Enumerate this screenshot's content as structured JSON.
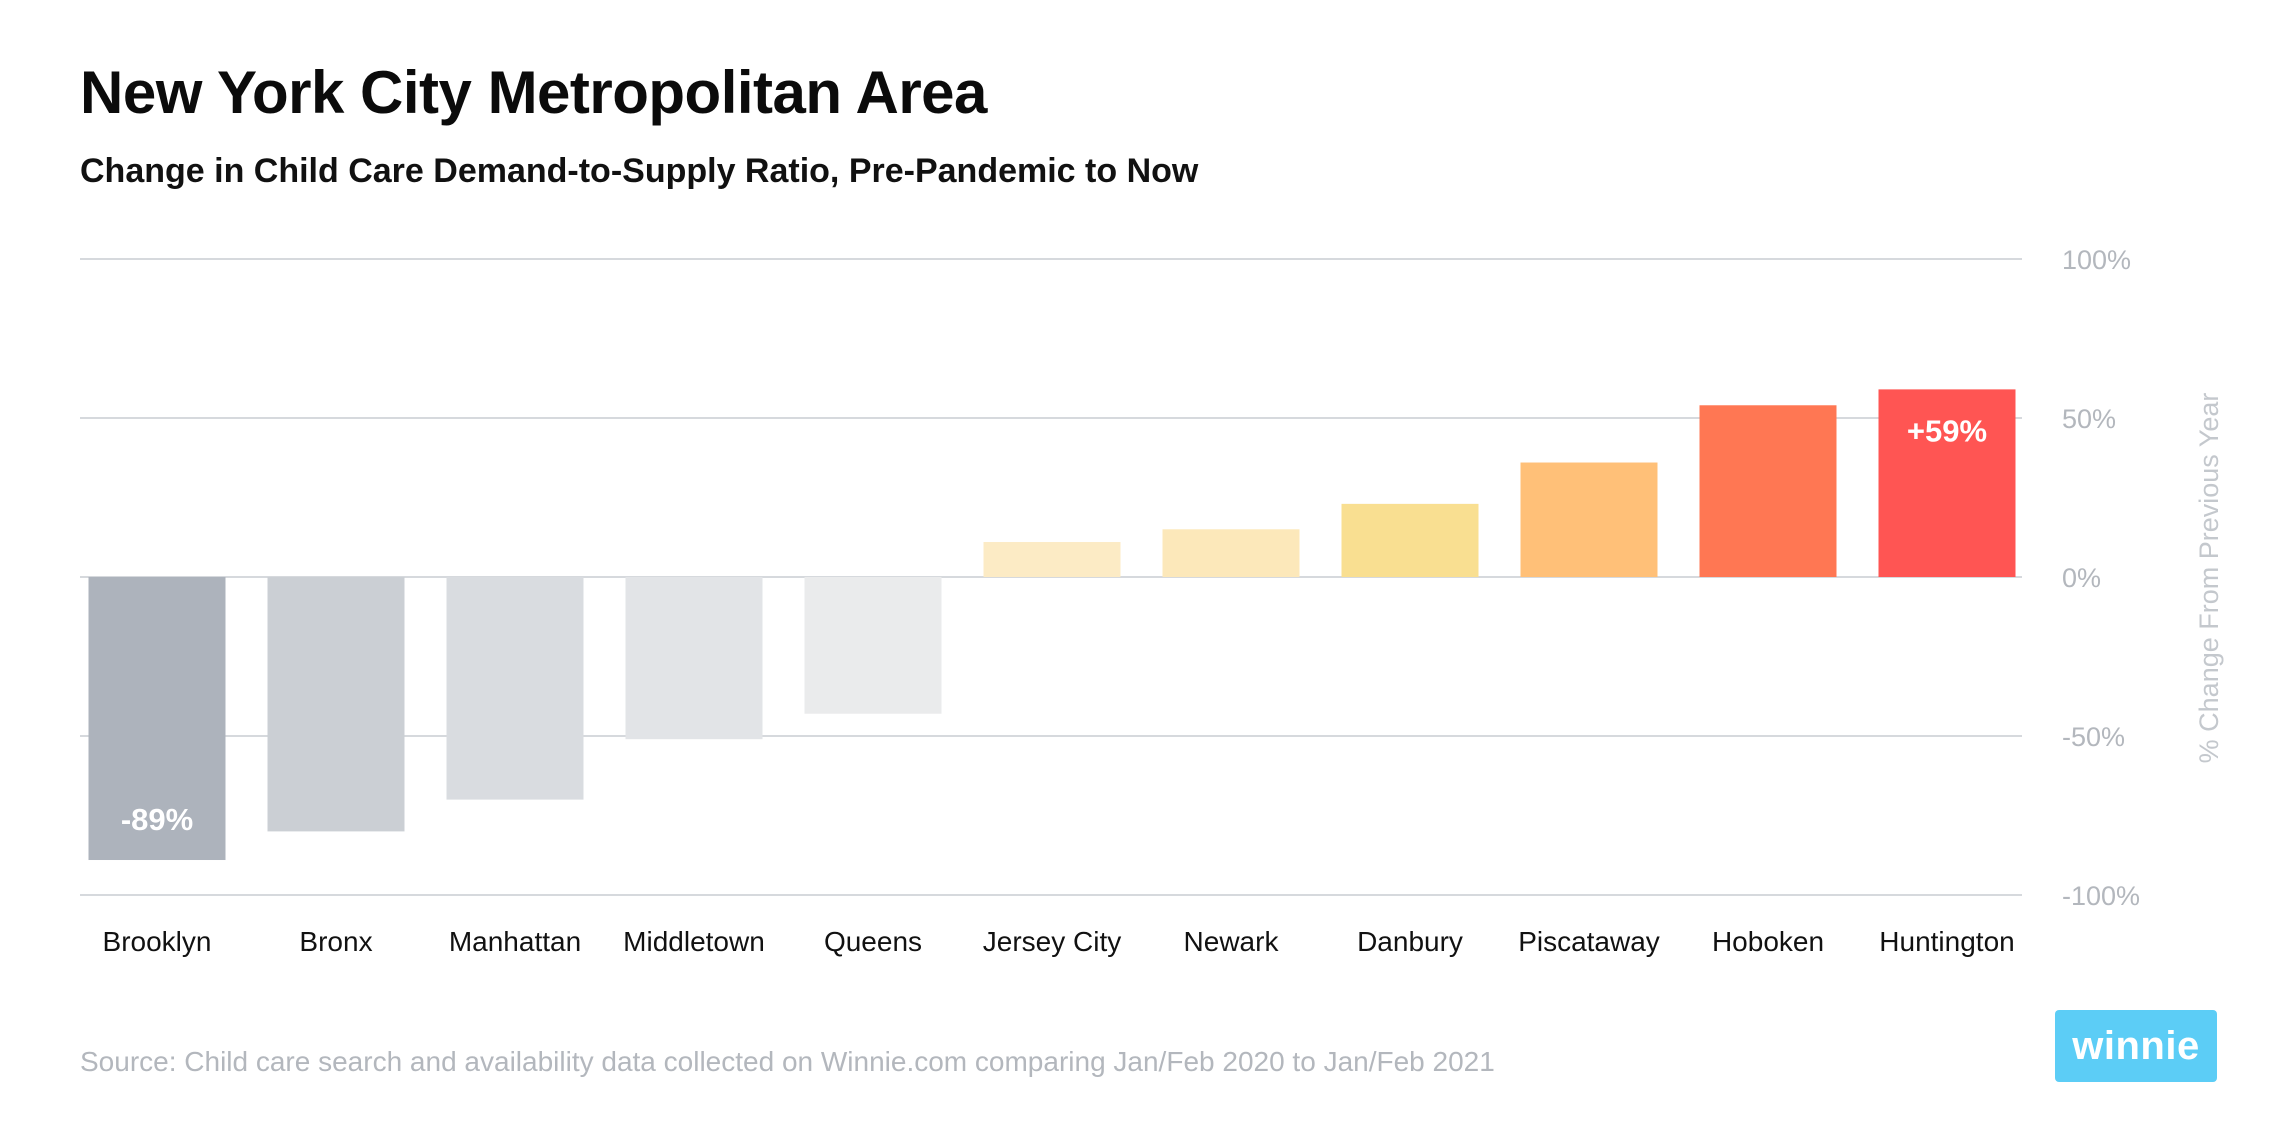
{
  "title": "New York City Metropolitan Area",
  "subtitle": "Change in Child Care Demand-to-Supply Ratio, Pre-Pandemic to Now",
  "source": "Source: Child care search and availability data collected on Winnie.com comparing Jan/Feb 2020 to Jan/Feb 2021",
  "logo_text": "winnie",
  "colors": {
    "logo_bg": "#5ccdf6",
    "gridline": "#d6d9dd",
    "bars": [
      "#adb3bc",
      "#cbcfd4",
      "#d9dce0",
      "#e2e4e7",
      "#eaebec",
      "#fcebc5",
      "#fce8ba",
      "#f9df91",
      "#ffc078",
      "#ff7753",
      "#ff5553"
    ]
  },
  "chart_data": {
    "type": "bar",
    "title": "New York City Metropolitan Area",
    "subtitle": "Change in Child Care Demand-to-Supply Ratio, Pre-Pandemic to Now",
    "xlabel": "",
    "ylabel": "% Change From Previous Year",
    "ylim": [
      -100,
      100
    ],
    "yticks": [
      100,
      50,
      0,
      -50,
      -100
    ],
    "ytick_labels": [
      "100%",
      "50%",
      "0%",
      "-50%",
      "-100%"
    ],
    "grid": true,
    "categories": [
      "Brooklyn",
      "Bronx",
      "Manhattan",
      "Middletown",
      "Queens",
      "Jersey City",
      "Newark",
      "Danbury",
      "Piscataway",
      "Hoboken",
      "Huntington"
    ],
    "values": [
      -89,
      -80,
      -70,
      -51,
      -43,
      11,
      15,
      23,
      36,
      54,
      59
    ],
    "data_labels": [
      {
        "category": "Brooklyn",
        "text": "-89%"
      },
      {
        "category": "Huntington",
        "text": "+59%"
      }
    ]
  }
}
